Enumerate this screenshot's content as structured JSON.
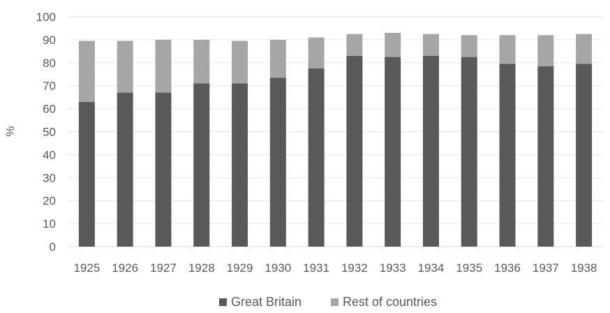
{
  "chart_data": {
    "type": "bar",
    "stacked": true,
    "title": "",
    "xlabel": "",
    "ylabel": "%",
    "ylim": [
      0,
      100
    ],
    "yticks": [
      0,
      10,
      20,
      30,
      40,
      50,
      60,
      70,
      80,
      90,
      100
    ],
    "grid": true,
    "legend_position": "bottom",
    "categories": [
      "1925",
      "1926",
      "1927",
      "1928",
      "1929",
      "1930",
      "1931",
      "1932",
      "1933",
      "1934",
      "1935",
      "1936",
      "1937",
      "1938"
    ],
    "series": [
      {
        "name": "Great Britain",
        "color": "#595959",
        "values": [
          63,
          67,
          67,
          71,
          71,
          73.5,
          77.5,
          83,
          82.5,
          83,
          82.5,
          79.5,
          78.5,
          79.5
        ]
      },
      {
        "name": "Rest of countries",
        "color": "#a6a6a6",
        "values": [
          26.5,
          22.5,
          23,
          19,
          18.5,
          16.5,
          13.5,
          9.5,
          10.5,
          9.5,
          9.5,
          12.5,
          13.5,
          13
        ]
      }
    ]
  }
}
